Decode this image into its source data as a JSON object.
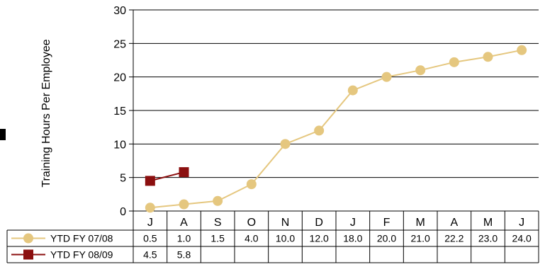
{
  "chart_data": {
    "type": "line",
    "title": "",
    "xlabel": "",
    "ylabel": "Training Hours Per Employee",
    "ylim": [
      0,
      30
    ],
    "yticks": [
      0,
      5,
      10,
      15,
      20,
      25,
      30
    ],
    "grid": true,
    "legend_placement": "data table below chart",
    "categories": [
      "J",
      "A",
      "S",
      "O",
      "N",
      "D",
      "J",
      "F",
      "M",
      "A",
      "M",
      "J"
    ],
    "series": [
      {
        "name": "YTD FY 07/08",
        "color": "#E5C77F",
        "marker": "circle",
        "values": [
          0.5,
          1.0,
          1.5,
          4.0,
          10.0,
          12.0,
          18.0,
          20.0,
          21.0,
          22.2,
          23.0,
          24.0
        ],
        "labels": [
          "0.5",
          "1.0",
          "1.5",
          "4.0",
          "10.0",
          "12.0",
          "18.0",
          "20.0",
          "21.0",
          "22.2",
          "23.0",
          "24.0"
        ]
      },
      {
        "name": "YTD FY 08/09",
        "color": "#8B0F0F",
        "marker": "square",
        "values": [
          4.5,
          5.8,
          null,
          null,
          null,
          null,
          null,
          null,
          null,
          null,
          null,
          null
        ],
        "labels": [
          "4.5",
          "5.8",
          "",
          "",
          "",
          "",
          "",
          "",
          "",
          "",
          "",
          ""
        ]
      }
    ]
  }
}
